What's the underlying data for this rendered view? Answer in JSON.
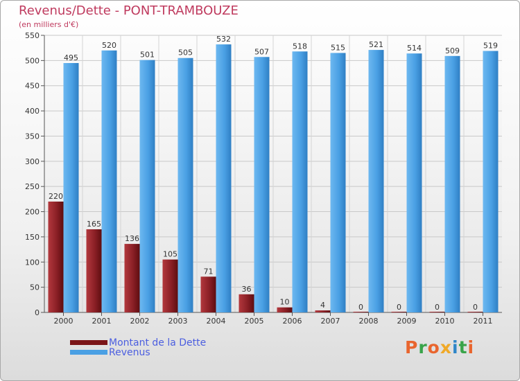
{
  "header": {
    "title": "Revenus/Dette - PONT-TRAMBOUZE",
    "subtitle": "(en milliers d'€)"
  },
  "chart_data": {
    "type": "bar",
    "title": "Revenus/Dette - PONT-TRAMBOUZE",
    "ylabel": "(en milliers d'€)",
    "ylim": [
      0,
      550
    ],
    "yticks": [
      0,
      50,
      100,
      150,
      200,
      250,
      300,
      350,
      400,
      450,
      500,
      550
    ],
    "grid": true,
    "categories": [
      "2000",
      "2001",
      "2002",
      "2003",
      "2004",
      "2005",
      "2006",
      "2007",
      "2008",
      "2009",
      "2010",
      "2011"
    ],
    "series": [
      {
        "name": "Montant de la Dette",
        "color": "#7b1518",
        "values": [
          220,
          165,
          136,
          105,
          71,
          36,
          10,
          4,
          0,
          0,
          0,
          0
        ]
      },
      {
        "name": "Revenus",
        "color": "#4aa0e4",
        "values": [
          495,
          520,
          501,
          505,
          532,
          507,
          518,
          515,
          521,
          514,
          509,
          519
        ]
      }
    ],
    "legend_position": "bottom-left"
  },
  "legend": {
    "items": [
      {
        "label": "Montant de la Dette",
        "color": "#7b1518"
      },
      {
        "label": "Revenus",
        "color": "#4aa0e4"
      }
    ]
  },
  "logo": {
    "letters": [
      "P",
      "r",
      "o",
      "x",
      "i",
      "t",
      "i"
    ],
    "colors": [
      "#e9652e",
      "#39a44a",
      "#e9652e",
      "#f0a928",
      "#2f86c8",
      "#39a44a",
      "#e9652e"
    ]
  }
}
